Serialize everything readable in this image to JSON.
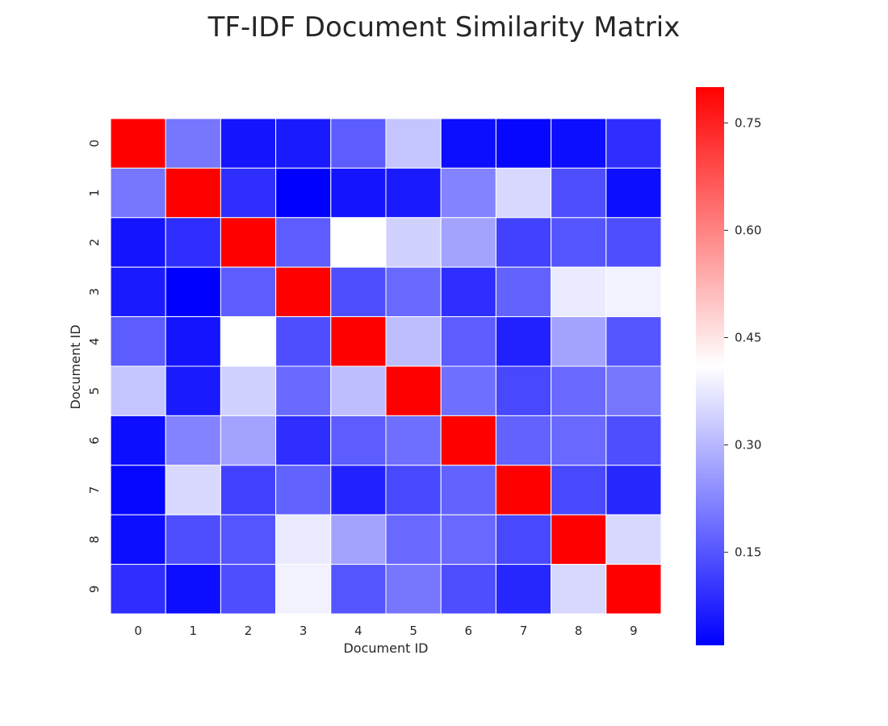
{
  "chart_data": {
    "type": "heatmap",
    "title": "TF-IDF Document Similarity Matrix",
    "xlabel": "Document ID",
    "ylabel": "Document ID",
    "x_categories": [
      "0",
      "1",
      "2",
      "3",
      "4",
      "5",
      "6",
      "7",
      "8",
      "9"
    ],
    "y_categories": [
      "0",
      "1",
      "2",
      "3",
      "4",
      "5",
      "6",
      "7",
      "8",
      "9"
    ],
    "values": [
      [
        0.8,
        0.2,
        0.05,
        0.06,
        0.16,
        0.32,
        0.04,
        0.03,
        0.04,
        0.09
      ],
      [
        0.2,
        0.8,
        0.09,
        0.02,
        0.05,
        0.06,
        0.22,
        0.35,
        0.14,
        0.04
      ],
      [
        0.05,
        0.09,
        0.8,
        0.16,
        0.41,
        0.34,
        0.27,
        0.12,
        0.15,
        0.14
      ],
      [
        0.06,
        0.02,
        0.16,
        0.8,
        0.14,
        0.18,
        0.09,
        0.17,
        0.38,
        0.39
      ],
      [
        0.16,
        0.05,
        0.41,
        0.14,
        0.8,
        0.31,
        0.16,
        0.07,
        0.27,
        0.15
      ],
      [
        0.32,
        0.06,
        0.34,
        0.18,
        0.31,
        0.8,
        0.19,
        0.13,
        0.18,
        0.2
      ],
      [
        0.04,
        0.22,
        0.27,
        0.09,
        0.16,
        0.19,
        0.8,
        0.17,
        0.18,
        0.14
      ],
      [
        0.03,
        0.35,
        0.12,
        0.17,
        0.07,
        0.13,
        0.17,
        0.8,
        0.13,
        0.08
      ],
      [
        0.04,
        0.14,
        0.15,
        0.38,
        0.27,
        0.18,
        0.18,
        0.13,
        0.8,
        0.35
      ],
      [
        0.09,
        0.04,
        0.14,
        0.39,
        0.15,
        0.2,
        0.14,
        0.08,
        0.35,
        0.8
      ]
    ],
    "colormap": "bwr",
    "colormap_colors": [
      "#0000ff",
      "#ffffff",
      "#ff0000"
    ],
    "vmin": 0.02,
    "vmax": 0.8,
    "colorbar_ticks": [
      0.15,
      0.3,
      0.45,
      0.6,
      0.75
    ],
    "colorbar_tick_labels": [
      "0.15",
      "0.30",
      "0.45",
      "0.60",
      "0.75"
    ],
    "cell_line_color": "#ffffff",
    "grid": false
  }
}
